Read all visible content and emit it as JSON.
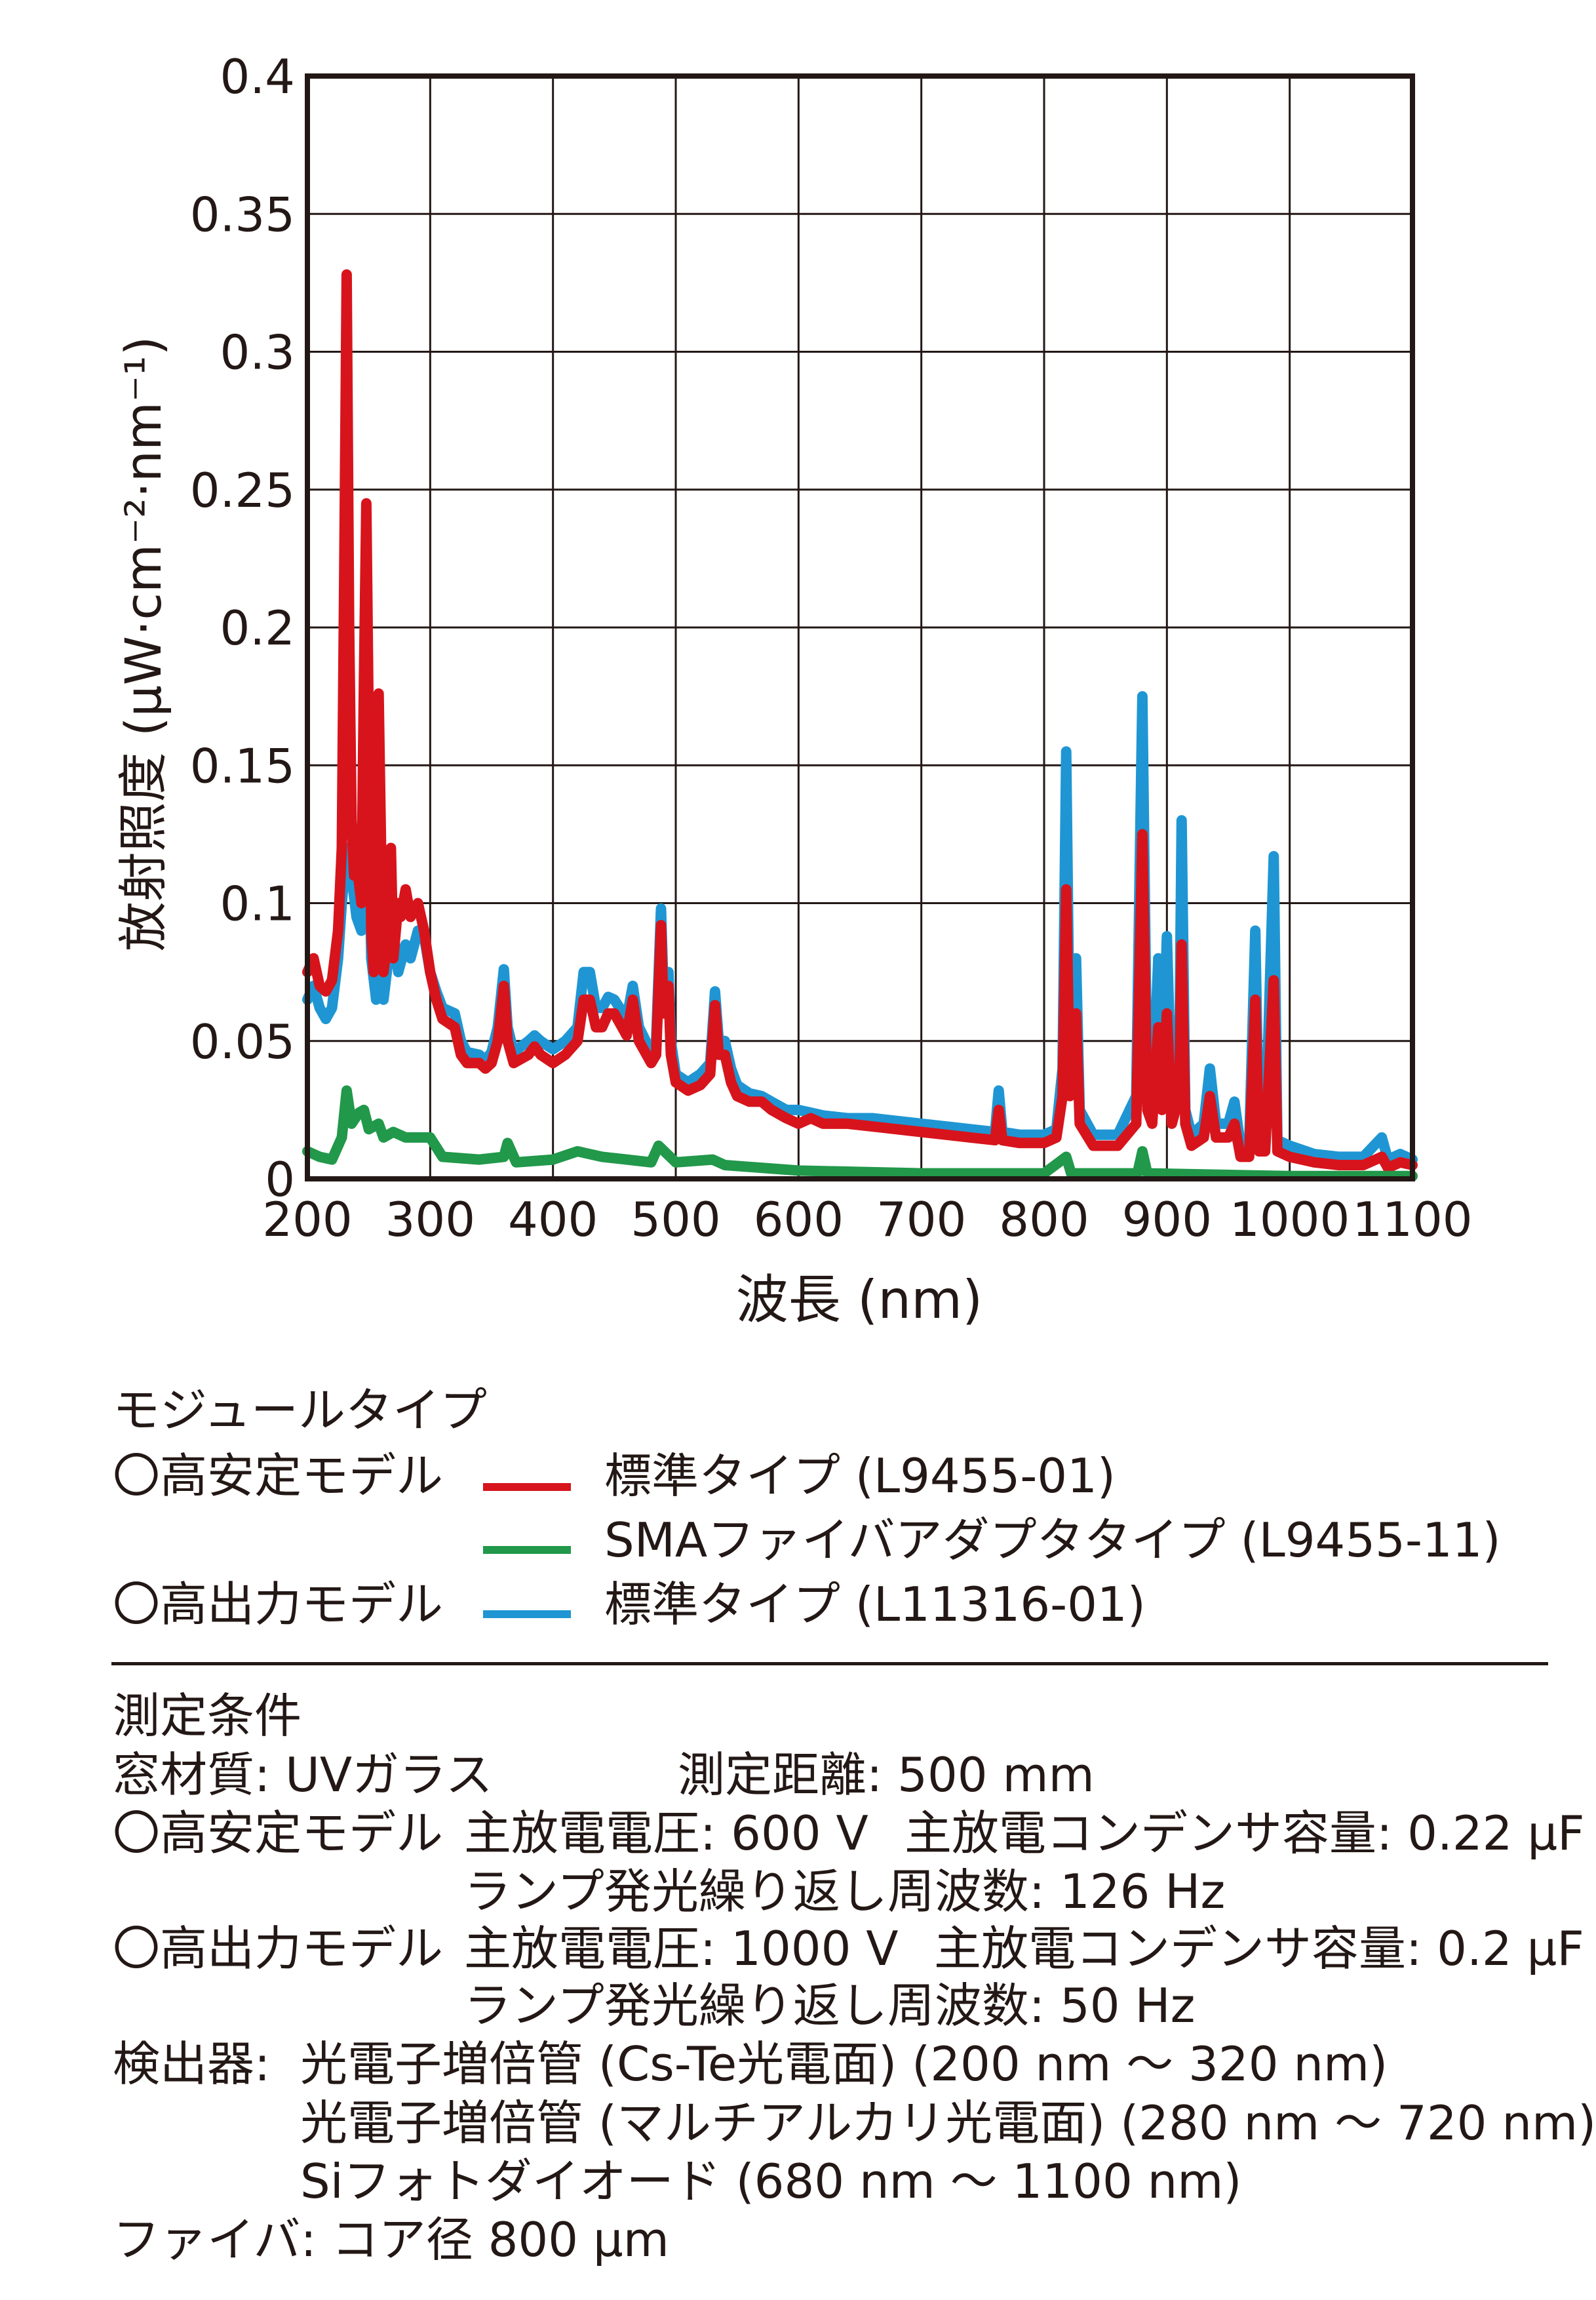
{
  "chart_data": {
    "type": "line",
    "xlabel": "波長 (nm)",
    "ylabel": "放射照度 (μW·cm⁻²·nm⁻¹)",
    "xlim": [
      200,
      1100
    ],
    "ylim": [
      0,
      0.4
    ],
    "grid": true,
    "xticks": [
      "200",
      "300",
      "400",
      "500",
      "600",
      "700",
      "800",
      "900",
      "1000",
      "1100"
    ],
    "yticks": [
      "0",
      "0.05",
      "0.1",
      "0.15",
      "0.2",
      "0.25",
      "0.3",
      "0.35",
      "0.4"
    ],
    "legend_title": "モジュールタイプ",
    "series": [
      {
        "name": "標準タイプ (L11316-01)",
        "group": "〇高出力モデル",
        "color": "#1f96d3",
        "points": [
          [
            200,
            0.065
          ],
          [
            205,
            0.07
          ],
          [
            210,
            0.062
          ],
          [
            215,
            0.058
          ],
          [
            220,
            0.062
          ],
          [
            225,
            0.08
          ],
          [
            228,
            0.1
          ],
          [
            232,
            0.12
          ],
          [
            236,
            0.11
          ],
          [
            240,
            0.095
          ],
          [
            244,
            0.09
          ],
          [
            248,
            0.2
          ],
          [
            250,
            0.13
          ],
          [
            252,
            0.08
          ],
          [
            256,
            0.065
          ],
          [
            258,
            0.12
          ],
          [
            262,
            0.065
          ],
          [
            266,
            0.08
          ],
          [
            270,
            0.09
          ],
          [
            274,
            0.075
          ],
          [
            280,
            0.085
          ],
          [
            284,
            0.08
          ],
          [
            290,
            0.09
          ],
          [
            295,
            0.088
          ],
          [
            300,
            0.075
          ],
          [
            305,
            0.068
          ],
          [
            310,
            0.062
          ],
          [
            320,
            0.06
          ],
          [
            325,
            0.05
          ],
          [
            330,
            0.046
          ],
          [
            340,
            0.045
          ],
          [
            345,
            0.043
          ],
          [
            350,
            0.046
          ],
          [
            355,
            0.055
          ],
          [
            360,
            0.076
          ],
          [
            363,
            0.055
          ],
          [
            368,
            0.046
          ],
          [
            380,
            0.05
          ],
          [
            385,
            0.052
          ],
          [
            390,
            0.05
          ],
          [
            400,
            0.047
          ],
          [
            410,
            0.05
          ],
          [
            420,
            0.055
          ],
          [
            425,
            0.075
          ],
          [
            430,
            0.075
          ],
          [
            435,
            0.062
          ],
          [
            440,
            0.062
          ],
          [
            445,
            0.066
          ],
          [
            450,
            0.065
          ],
          [
            460,
            0.058
          ],
          [
            465,
            0.07
          ],
          [
            470,
            0.055
          ],
          [
            480,
            0.046
          ],
          [
            484,
            0.05
          ],
          [
            488,
            0.098
          ],
          [
            490,
            0.068
          ],
          [
            494,
            0.075
          ],
          [
            496,
            0.05
          ],
          [
            500,
            0.038
          ],
          [
            510,
            0.035
          ],
          [
            520,
            0.038
          ],
          [
            528,
            0.042
          ],
          [
            532,
            0.068
          ],
          [
            535,
            0.05
          ],
          [
            540,
            0.05
          ],
          [
            545,
            0.04
          ],
          [
            550,
            0.034
          ],
          [
            560,
            0.031
          ],
          [
            570,
            0.03
          ],
          [
            578,
            0.028
          ],
          [
            590,
            0.025
          ],
          [
            600,
            0.025
          ],
          [
            610,
            0.024
          ],
          [
            620,
            0.023
          ],
          [
            640,
            0.022
          ],
          [
            660,
            0.022
          ],
          [
            680,
            0.021
          ],
          [
            700,
            0.02
          ],
          [
            720,
            0.019
          ],
          [
            740,
            0.018
          ],
          [
            760,
            0.017
          ],
          [
            763,
            0.032
          ],
          [
            766,
            0.017
          ],
          [
            780,
            0.016
          ],
          [
            800,
            0.016
          ],
          [
            810,
            0.018
          ],
          [
            815,
            0.04
          ],
          [
            818,
            0.155
          ],
          [
            821,
            0.04
          ],
          [
            826,
            0.08
          ],
          [
            829,
            0.025
          ],
          [
            840,
            0.016
          ],
          [
            860,
            0.016
          ],
          [
            875,
            0.03
          ],
          [
            880,
            0.175
          ],
          [
            884,
            0.03
          ],
          [
            888,
            0.025
          ],
          [
            893,
            0.08
          ],
          [
            896,
            0.03
          ],
          [
            900,
            0.088
          ],
          [
            904,
            0.025
          ],
          [
            910,
            0.04
          ],
          [
            912,
            0.13
          ],
          [
            915,
            0.025
          ],
          [
            920,
            0.016
          ],
          [
            930,
            0.02
          ],
          [
            935,
            0.04
          ],
          [
            940,
            0.02
          ],
          [
            950,
            0.02
          ],
          [
            955,
            0.028
          ],
          [
            960,
            0.012
          ],
          [
            967,
            0.012
          ],
          [
            972,
            0.09
          ],
          [
            975,
            0.014
          ],
          [
            980,
            0.013
          ],
          [
            987,
            0.117
          ],
          [
            990,
            0.014
          ],
          [
            1000,
            0.012
          ],
          [
            1020,
            0.009
          ],
          [
            1040,
            0.008
          ],
          [
            1060,
            0.008
          ],
          [
            1075,
            0.015
          ],
          [
            1080,
            0.007
          ],
          [
            1090,
            0.009
          ],
          [
            1100,
            0.007
          ]
        ]
      },
      {
        "name": "標準タイプ (L9455-01)",
        "group": "〇高安定モデル",
        "color": "#d7141c",
        "points": [
          [
            200,
            0.075
          ],
          [
            205,
            0.08
          ],
          [
            210,
            0.07
          ],
          [
            215,
            0.068
          ],
          [
            220,
            0.072
          ],
          [
            225,
            0.09
          ],
          [
            228,
            0.12
          ],
          [
            230,
            0.22
          ],
          [
            232,
            0.328
          ],
          [
            234,
            0.2
          ],
          [
            236,
            0.13
          ],
          [
            238,
            0.11
          ],
          [
            240,
            0.115
          ],
          [
            244,
            0.1
          ],
          [
            246,
            0.18
          ],
          [
            248,
            0.245
          ],
          [
            250,
            0.16
          ],
          [
            252,
            0.09
          ],
          [
            254,
            0.075
          ],
          [
            256,
            0.12
          ],
          [
            258,
            0.176
          ],
          [
            260,
            0.12
          ],
          [
            262,
            0.075
          ],
          [
            266,
            0.09
          ],
          [
            268,
            0.12
          ],
          [
            270,
            0.08
          ],
          [
            274,
            0.1
          ],
          [
            276,
            0.095
          ],
          [
            280,
            0.105
          ],
          [
            284,
            0.095
          ],
          [
            290,
            0.1
          ],
          [
            295,
            0.09
          ],
          [
            300,
            0.075
          ],
          [
            305,
            0.065
          ],
          [
            310,
            0.058
          ],
          [
            320,
            0.055
          ],
          [
            325,
            0.045
          ],
          [
            330,
            0.042
          ],
          [
            340,
            0.042
          ],
          [
            345,
            0.04
          ],
          [
            350,
            0.042
          ],
          [
            355,
            0.05
          ],
          [
            360,
            0.07
          ],
          [
            363,
            0.05
          ],
          [
            368,
            0.042
          ],
          [
            380,
            0.045
          ],
          [
            385,
            0.048
          ],
          [
            390,
            0.045
          ],
          [
            400,
            0.042
          ],
          [
            410,
            0.045
          ],
          [
            420,
            0.05
          ],
          [
            425,
            0.065
          ],
          [
            430,
            0.065
          ],
          [
            435,
            0.055
          ],
          [
            440,
            0.055
          ],
          [
            445,
            0.06
          ],
          [
            450,
            0.06
          ],
          [
            460,
            0.052
          ],
          [
            465,
            0.065
          ],
          [
            470,
            0.05
          ],
          [
            480,
            0.042
          ],
          [
            484,
            0.045
          ],
          [
            488,
            0.092
          ],
          [
            490,
            0.06
          ],
          [
            494,
            0.07
          ],
          [
            496,
            0.045
          ],
          [
            500,
            0.035
          ],
          [
            510,
            0.032
          ],
          [
            520,
            0.034
          ],
          [
            528,
            0.038
          ],
          [
            532,
            0.063
          ],
          [
            535,
            0.045
          ],
          [
            540,
            0.045
          ],
          [
            545,
            0.035
          ],
          [
            550,
            0.03
          ],
          [
            560,
            0.028
          ],
          [
            570,
            0.028
          ],
          [
            578,
            0.025
          ],
          [
            590,
            0.022
          ],
          [
            600,
            0.02
          ],
          [
            610,
            0.022
          ],
          [
            620,
            0.02
          ],
          [
            640,
            0.02
          ],
          [
            660,
            0.019
          ],
          [
            680,
            0.018
          ],
          [
            700,
            0.017
          ],
          [
            720,
            0.016
          ],
          [
            740,
            0.015
          ],
          [
            760,
            0.014
          ],
          [
            763,
            0.025
          ],
          [
            766,
            0.014
          ],
          [
            780,
            0.013
          ],
          [
            800,
            0.013
          ],
          [
            810,
            0.015
          ],
          [
            815,
            0.03
          ],
          [
            818,
            0.105
          ],
          [
            821,
            0.03
          ],
          [
            826,
            0.06
          ],
          [
            829,
            0.02
          ],
          [
            840,
            0.012
          ],
          [
            860,
            0.012
          ],
          [
            875,
            0.02
          ],
          [
            880,
            0.125
          ],
          [
            884,
            0.025
          ],
          [
            888,
            0.02
          ],
          [
            893,
            0.055
          ],
          [
            896,
            0.025
          ],
          [
            900,
            0.06
          ],
          [
            904,
            0.02
          ],
          [
            910,
            0.03
          ],
          [
            912,
            0.085
          ],
          [
            915,
            0.02
          ],
          [
            920,
            0.012
          ],
          [
            930,
            0.015
          ],
          [
            935,
            0.03
          ],
          [
            940,
            0.015
          ],
          [
            950,
            0.015
          ],
          [
            955,
            0.02
          ],
          [
            960,
            0.008
          ],
          [
            967,
            0.008
          ],
          [
            972,
            0.065
          ],
          [
            975,
            0.01
          ],
          [
            980,
            0.01
          ],
          [
            987,
            0.072
          ],
          [
            990,
            0.01
          ],
          [
            1000,
            0.008
          ],
          [
            1020,
            0.006
          ],
          [
            1040,
            0.005
          ],
          [
            1060,
            0.005
          ],
          [
            1075,
            0.008
          ],
          [
            1080,
            0.004
          ],
          [
            1090,
            0.006
          ],
          [
            1100,
            0.005
          ]
        ]
      },
      {
        "name": "SMAファイバアダプタタイプ (L9455-11)",
        "group": "〇高安定モデル",
        "color": "#21984a",
        "points": [
          [
            200,
            0.01
          ],
          [
            210,
            0.008
          ],
          [
            220,
            0.007
          ],
          [
            228,
            0.015
          ],
          [
            232,
            0.032
          ],
          [
            236,
            0.02
          ],
          [
            242,
            0.024
          ],
          [
            246,
            0.025
          ],
          [
            250,
            0.018
          ],
          [
            258,
            0.02
          ],
          [
            262,
            0.015
          ],
          [
            270,
            0.017
          ],
          [
            280,
            0.015
          ],
          [
            300,
            0.015
          ],
          [
            310,
            0.008
          ],
          [
            340,
            0.007
          ],
          [
            360,
            0.008
          ],
          [
            363,
            0.013
          ],
          [
            370,
            0.006
          ],
          [
            400,
            0.007
          ],
          [
            420,
            0.01
          ],
          [
            440,
            0.008
          ],
          [
            460,
            0.007
          ],
          [
            480,
            0.006
          ],
          [
            486,
            0.012
          ],
          [
            500,
            0.006
          ],
          [
            530,
            0.007
          ],
          [
            540,
            0.005
          ],
          [
            600,
            0.003
          ],
          [
            700,
            0.002
          ],
          [
            800,
            0.002
          ],
          [
            818,
            0.008
          ],
          [
            822,
            0.002
          ],
          [
            876,
            0.002
          ],
          [
            880,
            0.01
          ],
          [
            884,
            0.002
          ],
          [
            1000,
            0.001
          ],
          [
            1100,
            0.001
          ]
        ]
      }
    ]
  },
  "legend": {
    "title": "モジュールタイプ",
    "group_stable": "〇高安定モデル",
    "group_power": "〇高出力モデル",
    "item_red": "標準タイプ (L9455-01)",
    "item_green": "SMAファイバアダプタタイプ (L9455-11)",
    "item_blue": "標準タイプ (L11316-01)"
  },
  "conditions": {
    "title": "測定条件",
    "window": "窓材質: UVガラス",
    "distance": "測定距離: 500 mm",
    "stable_label": "〇高安定モデル",
    "stable_voltage": "主放電電圧: 600 V",
    "stable_cap": "主放電コンデンサ容量: 0.22 μF",
    "stable_freq": "ランプ発光繰り返し周波数: 126 Hz",
    "power_label": "〇高出力モデル",
    "power_voltage": "主放電電圧: 1000 V",
    "power_cap": "主放電コンデンサ容量: 0.2 μF",
    "power_freq": "ランプ発光繰り返し周波数: 50 Hz",
    "detector_label": "検出器:",
    "detector_1": "光電子増倍管 (Cs-Te光電面) (200 nm ～ 320 nm)",
    "detector_2": "光電子増倍管 (マルチアルカリ光電面) (280 nm ～ 720 nm)",
    "detector_3": "Siフォトダイオード (680 nm ～ 1100 nm)",
    "fiber": "ファイバ: コア径 800 μm"
  }
}
